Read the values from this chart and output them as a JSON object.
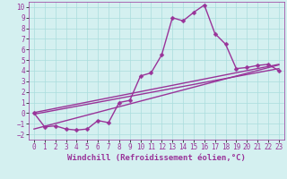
{
  "xlabel": "Windchill (Refroidissement éolien,°C)",
  "background_color": "#d4f0f0",
  "grid_color": "#aadddd",
  "line_color": "#993399",
  "xlim": [
    -0.5,
    23.5
  ],
  "ylim": [
    -2.5,
    10.5
  ],
  "xticks": [
    0,
    1,
    2,
    3,
    4,
    5,
    6,
    7,
    8,
    9,
    10,
    11,
    12,
    13,
    14,
    15,
    16,
    17,
    18,
    19,
    20,
    21,
    22,
    23
  ],
  "yticks": [
    -2,
    -1,
    0,
    1,
    2,
    3,
    4,
    5,
    6,
    7,
    8,
    9,
    10
  ],
  "data_x": [
    0,
    1,
    2,
    3,
    4,
    5,
    6,
    7,
    8,
    9,
    10,
    11,
    12,
    13,
    14,
    15,
    16,
    17,
    18,
    19,
    20,
    21,
    22,
    23
  ],
  "data_y": [
    0,
    -1.3,
    -1.2,
    -1.5,
    -1.6,
    -1.5,
    -0.7,
    -0.9,
    1.0,
    1.2,
    3.5,
    3.8,
    5.5,
    9.0,
    8.7,
    9.5,
    10.2,
    7.5,
    6.5,
    4.2,
    4.3,
    4.5,
    4.6,
    4.0
  ],
  "trend1_x": [
    0,
    23
  ],
  "trend1_y": [
    -0.1,
    4.2
  ],
  "trend2_x": [
    0,
    23
  ],
  "trend2_y": [
    -1.5,
    4.55
  ],
  "trend3_x": [
    0,
    23
  ],
  "trend3_y": [
    0.05,
    4.6
  ],
  "marker": "D",
  "marker_size": 2.5,
  "linewidth": 1.0,
  "tick_fontsize": 5.5,
  "label_fontsize": 6.5
}
